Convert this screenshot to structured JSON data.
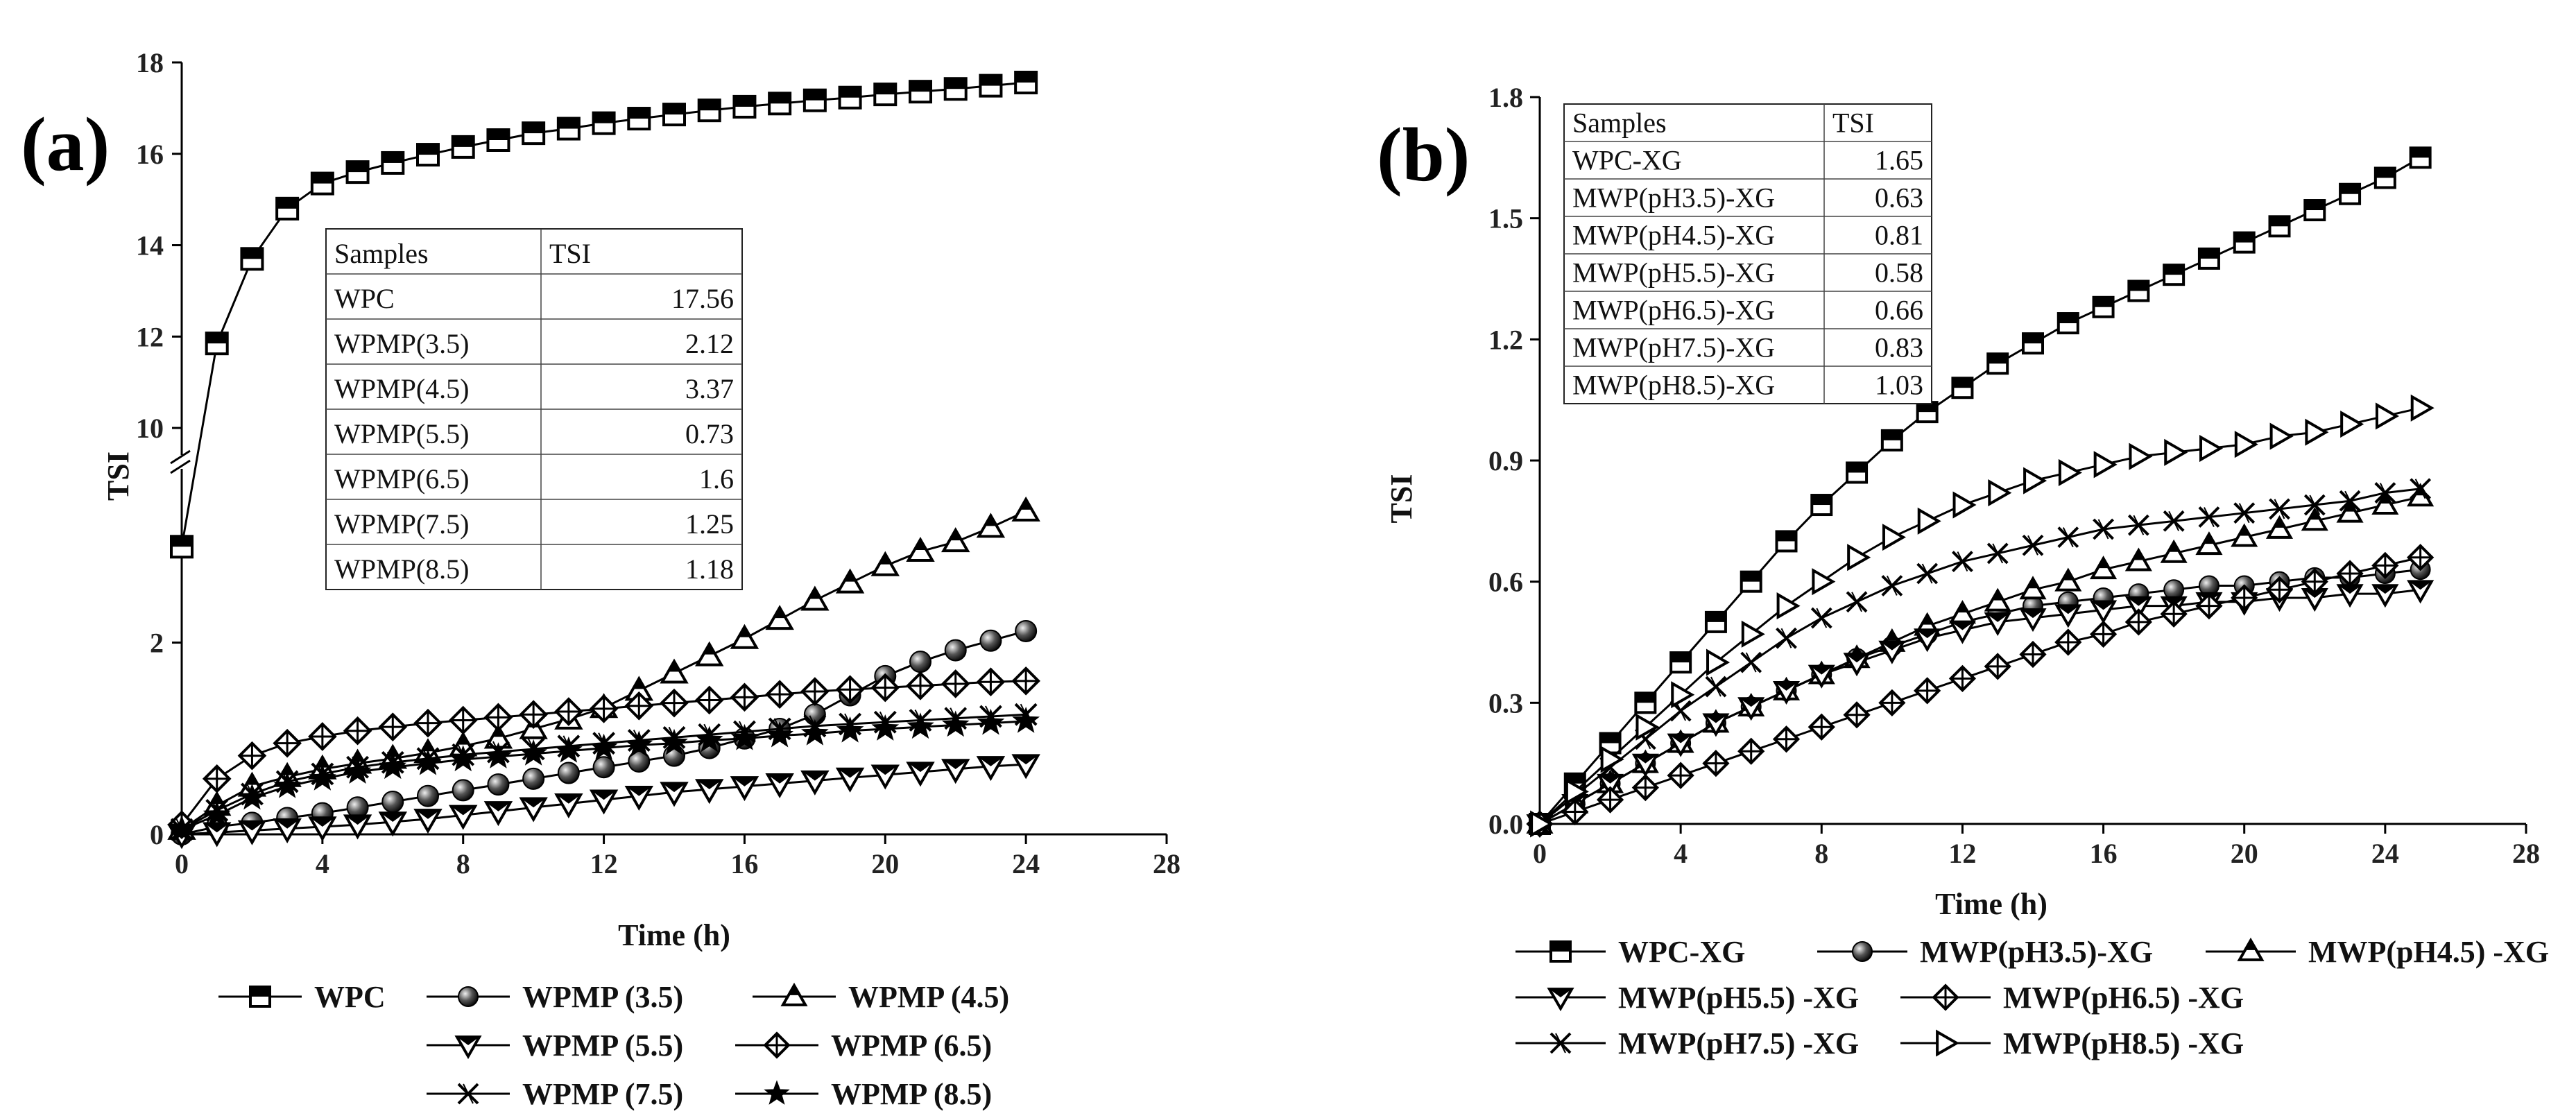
{
  "chart_data": [
    {
      "panel_label": "(a)",
      "type": "line",
      "xlabel": "Time (h)",
      "ylabel": "TSI",
      "xlim": [
        0,
        28
      ],
      "x_ticks": [
        "0",
        "4",
        "8",
        "12",
        "16",
        "20",
        "24",
        "28"
      ],
      "y_ticks": [
        "0",
        "2",
        "10",
        "12",
        "14",
        "16",
        "18"
      ],
      "axis_break": {
        "lower": [
          0,
          3.4
        ],
        "upper": [
          9.5,
          18
        ]
      },
      "table": {
        "headers": [
          "Samples",
          "TSI"
        ],
        "rows": [
          [
            "WPC",
            "17.56"
          ],
          [
            "WPMP(3.5)",
            "2.12"
          ],
          [
            "WPMP(4.5)",
            "3.37"
          ],
          [
            "WPMP(5.5)",
            "0.73"
          ],
          [
            "WPMP(6.5)",
            "1.6"
          ],
          [
            "WPMP(7.5)",
            "1.25"
          ],
          [
            "WPMP(8.5)",
            "1.18"
          ]
        ]
      },
      "series": [
        {
          "name": "WPC",
          "marker": "square",
          "legend": "WPC",
          "x": [
            0,
            1,
            2,
            3,
            4,
            5,
            6,
            7,
            8,
            9,
            10,
            11,
            12,
            13,
            14,
            15,
            16,
            17,
            18,
            19,
            20,
            21,
            22,
            23,
            24
          ],
          "values": [
            3,
            11.85,
            13.7,
            14.8,
            15.35,
            15.6,
            15.8,
            15.98,
            16.15,
            16.3,
            16.45,
            16.55,
            16.67,
            16.77,
            16.86,
            16.95,
            17.03,
            17.1,
            17.17,
            17.23,
            17.3,
            17.36,
            17.42,
            17.49,
            17.56
          ]
        },
        {
          "name": "WPMP (3.5)",
          "marker": "sphere",
          "legend": "WPMP (3.5)",
          "x": [
            0,
            1,
            2,
            3,
            4,
            5,
            6,
            7,
            8,
            9,
            10,
            11,
            12,
            13,
            14,
            15,
            16,
            17,
            18,
            19,
            20,
            21,
            22,
            23,
            24
          ],
          "values": [
            0,
            0.08,
            0.12,
            0.17,
            0.22,
            0.28,
            0.34,
            0.4,
            0.46,
            0.52,
            0.58,
            0.64,
            0.7,
            0.76,
            0.82,
            0.9,
            1.0,
            1.1,
            1.25,
            1.45,
            1.65,
            1.8,
            1.92,
            2.02,
            2.12
          ]
        },
        {
          "name": "WPMP (4.5)",
          "marker": "triangle-up",
          "legend": "WPMP (4.5)",
          "x": [
            0,
            1,
            2,
            3,
            4,
            5,
            6,
            7,
            8,
            9,
            10,
            11,
            12,
            13,
            14,
            15,
            16,
            17,
            18,
            19,
            20,
            21,
            22,
            23,
            24
          ],
          "values": [
            0.05,
            0.3,
            0.5,
            0.6,
            0.68,
            0.74,
            0.79,
            0.85,
            0.92,
            1.0,
            1.1,
            1.2,
            1.32,
            1.5,
            1.68,
            1.86,
            2.04,
            2.24,
            2.44,
            2.62,
            2.8,
            2.95,
            3.05,
            3.2,
            3.37
          ]
        },
        {
          "name": "WPMP (5.5)",
          "marker": "triangle-down",
          "legend": "WPMP (5.5)",
          "x": [
            0,
            1,
            2,
            3,
            4,
            5,
            6,
            7,
            8,
            9,
            10,
            11,
            12,
            13,
            14,
            15,
            16,
            17,
            18,
            19,
            20,
            21,
            22,
            23,
            24
          ],
          "values": [
            0,
            0.02,
            0.04,
            0.06,
            0.08,
            0.1,
            0.13,
            0.16,
            0.2,
            0.24,
            0.28,
            0.32,
            0.36,
            0.4,
            0.44,
            0.47,
            0.5,
            0.53,
            0.56,
            0.59,
            0.62,
            0.65,
            0.68,
            0.71,
            0.73
          ]
        },
        {
          "name": "WPMP (6.5)",
          "marker": "diamond-plus",
          "legend": "WPMP (6.5)",
          "x": [
            0,
            1,
            2,
            3,
            4,
            5,
            6,
            7,
            8,
            9,
            10,
            11,
            12,
            13,
            14,
            15,
            16,
            17,
            18,
            19,
            20,
            21,
            22,
            23,
            24
          ],
          "values": [
            0.1,
            0.58,
            0.82,
            0.95,
            1.02,
            1.08,
            1.12,
            1.16,
            1.19,
            1.22,
            1.25,
            1.28,
            1.31,
            1.34,
            1.37,
            1.4,
            1.43,
            1.46,
            1.49,
            1.51,
            1.53,
            1.55,
            1.57,
            1.59,
            1.6
          ]
        },
        {
          "name": "WPMP (7.5)",
          "marker": "x-cross",
          "legend": "WPMP (7.5)",
          "x": [
            0,
            1,
            2,
            3,
            4,
            5,
            6,
            7,
            8,
            9,
            10,
            11,
            12,
            13,
            14,
            15,
            16,
            17,
            18,
            19,
            20,
            21,
            22,
            23,
            24
          ],
          "values": [
            0.05,
            0.25,
            0.42,
            0.55,
            0.63,
            0.7,
            0.75,
            0.79,
            0.83,
            0.86,
            0.89,
            0.92,
            0.95,
            0.98,
            1.01,
            1.04,
            1.07,
            1.1,
            1.13,
            1.15,
            1.17,
            1.19,
            1.21,
            1.23,
            1.25
          ]
        },
        {
          "name": "WPMP (8.5)",
          "marker": "star",
          "legend": "WPMP (8.5)",
          "x": [
            0,
            1,
            2,
            3,
            4,
            5,
            6,
            7,
            8,
            9,
            10,
            11,
            12,
            13,
            14,
            15,
            16,
            17,
            18,
            19,
            20,
            21,
            22,
            23,
            24
          ],
          "values": [
            0.05,
            0.2,
            0.38,
            0.5,
            0.58,
            0.65,
            0.7,
            0.74,
            0.78,
            0.81,
            0.84,
            0.87,
            0.9,
            0.93,
            0.95,
            0.98,
            1.0,
            1.03,
            1.05,
            1.08,
            1.1,
            1.12,
            1.14,
            1.16,
            1.18
          ]
        }
      ],
      "legend_labels": [
        "WPC",
        "WPMP (3.5)",
        "WPMP (4.5)",
        "WPMP (5.5)",
        "WPMP (6.5)",
        "WPMP (7.5)",
        "WPMP (8.5)"
      ]
    },
    {
      "panel_label": "(b)",
      "type": "line",
      "xlabel": "Time (h)",
      "ylabel": "TSI",
      "xlim": [
        0,
        28
      ],
      "ylim": [
        0,
        1.8
      ],
      "x_ticks": [
        "0",
        "4",
        "8",
        "12",
        "16",
        "20",
        "24",
        "28"
      ],
      "y_ticks": [
        "0.0",
        "0.3",
        "0.6",
        "0.9",
        "1.2",
        "1.5",
        "1.8"
      ],
      "table": {
        "headers": [
          "Samples",
          "TSI"
        ],
        "rows": [
          [
            "WPC-XG",
            "1.65"
          ],
          [
            "MWP(pH3.5)-XG",
            "0.63"
          ],
          [
            "MWP(pH4.5)-XG",
            "0.81"
          ],
          [
            "MWP(pH5.5)-XG",
            "0.58"
          ],
          [
            "MWP(pH6.5)-XG",
            "0.66"
          ],
          [
            "MWP(pH7.5)-XG",
            "0.83"
          ],
          [
            "MWP(pH8.5)-XG",
            "1.03"
          ]
        ]
      },
      "series": [
        {
          "name": "WPC-XG",
          "marker": "square",
          "legend": "WPC-XG",
          "x": [
            0,
            1,
            2,
            3,
            4,
            5,
            6,
            7,
            8,
            9,
            10,
            11,
            12,
            13,
            14,
            15,
            16,
            17,
            18,
            19,
            20,
            21,
            22,
            23,
            24,
            25
          ],
          "values": [
            0,
            0.1,
            0.2,
            0.3,
            0.4,
            0.5,
            0.6,
            0.7,
            0.79,
            0.87,
            0.95,
            1.02,
            1.08,
            1.14,
            1.19,
            1.24,
            1.28,
            1.32,
            1.36,
            1.4,
            1.44,
            1.48,
            1.52,
            1.56,
            1.6,
            1.65
          ]
        },
        {
          "name": "MWP(pH3.5)-XG",
          "marker": "sphere",
          "legend": "MWP(pH3.5)-XG",
          "x": [
            0,
            1,
            2,
            3,
            4,
            5,
            6,
            7,
            8,
            9,
            10,
            11,
            12,
            13,
            14,
            15,
            16,
            17,
            18,
            19,
            20,
            21,
            22,
            23,
            24,
            25
          ],
          "values": [
            0,
            0.05,
            0.1,
            0.15,
            0.2,
            0.25,
            0.29,
            0.33,
            0.37,
            0.41,
            0.44,
            0.47,
            0.5,
            0.52,
            0.54,
            0.55,
            0.56,
            0.57,
            0.58,
            0.59,
            0.59,
            0.6,
            0.61,
            0.61,
            0.62,
            0.63
          ]
        },
        {
          "name": "MWP(pH4.5)-XG",
          "marker": "triangle-up",
          "legend": "MWP(pH4.5) -XG",
          "x": [
            0,
            1,
            2,
            3,
            4,
            5,
            6,
            7,
            8,
            9,
            10,
            11,
            12,
            13,
            14,
            15,
            16,
            17,
            18,
            19,
            20,
            21,
            22,
            23,
            24,
            25
          ],
          "values": [
            0,
            0.05,
            0.1,
            0.15,
            0.2,
            0.25,
            0.29,
            0.33,
            0.37,
            0.41,
            0.45,
            0.49,
            0.52,
            0.55,
            0.58,
            0.6,
            0.63,
            0.65,
            0.67,
            0.69,
            0.71,
            0.73,
            0.75,
            0.77,
            0.79,
            0.81
          ]
        },
        {
          "name": "MWP(pH5.5)-XG",
          "marker": "triangle-down",
          "legend": "MWP(pH5.5) -XG",
          "x": [
            0,
            1,
            2,
            3,
            4,
            5,
            6,
            7,
            8,
            9,
            10,
            11,
            12,
            13,
            14,
            15,
            16,
            17,
            18,
            19,
            20,
            21,
            22,
            23,
            24,
            25
          ],
          "values": [
            0,
            0.05,
            0.1,
            0.15,
            0.2,
            0.25,
            0.29,
            0.33,
            0.37,
            0.4,
            0.43,
            0.46,
            0.48,
            0.5,
            0.51,
            0.52,
            0.53,
            0.54,
            0.54,
            0.55,
            0.55,
            0.56,
            0.56,
            0.57,
            0.57,
            0.58
          ]
        },
        {
          "name": "MWP(pH6.5)-XG",
          "marker": "diamond-plus",
          "legend": "MWP(pH6.5) -XG",
          "x": [
            0,
            1,
            2,
            3,
            4,
            5,
            6,
            7,
            8,
            9,
            10,
            11,
            12,
            13,
            14,
            15,
            16,
            17,
            18,
            19,
            20,
            21,
            22,
            23,
            24,
            25
          ],
          "values": [
            0,
            0.03,
            0.06,
            0.09,
            0.12,
            0.15,
            0.18,
            0.21,
            0.24,
            0.27,
            0.3,
            0.33,
            0.36,
            0.39,
            0.42,
            0.45,
            0.47,
            0.5,
            0.52,
            0.54,
            0.56,
            0.58,
            0.6,
            0.62,
            0.64,
            0.66
          ]
        },
        {
          "name": "MWP(pH7.5)-XG",
          "marker": "x-cross",
          "legend": "MWP(pH7.5) -XG",
          "x": [
            0,
            1,
            2,
            3,
            4,
            5,
            6,
            7,
            8,
            9,
            10,
            11,
            12,
            13,
            14,
            15,
            16,
            17,
            18,
            19,
            20,
            21,
            22,
            23,
            24,
            25
          ],
          "values": [
            0,
            0.07,
            0.14,
            0.21,
            0.28,
            0.34,
            0.4,
            0.46,
            0.51,
            0.55,
            0.59,
            0.62,
            0.65,
            0.67,
            0.69,
            0.71,
            0.73,
            0.74,
            0.75,
            0.76,
            0.77,
            0.78,
            0.79,
            0.8,
            0.82,
            0.83
          ]
        },
        {
          "name": "MWP(pH8.5)-XG",
          "marker": "triangle-right",
          "legend": "MWP(pH8.5) -XG",
          "x": [
            0,
            1,
            2,
            3,
            4,
            5,
            6,
            7,
            8,
            9,
            10,
            11,
            12,
            13,
            14,
            15,
            16,
            17,
            18,
            19,
            20,
            21,
            22,
            23,
            24,
            25
          ],
          "values": [
            0,
            0.08,
            0.16,
            0.24,
            0.32,
            0.4,
            0.47,
            0.54,
            0.6,
            0.66,
            0.71,
            0.75,
            0.79,
            0.82,
            0.85,
            0.87,
            0.89,
            0.91,
            0.92,
            0.93,
            0.94,
            0.96,
            0.97,
            0.99,
            1.01,
            1.03
          ]
        }
      ],
      "legend_labels": [
        "WPC-XG",
        "MWP(pH3.5)-XG",
        "MWP(pH4.5) -XG",
        "MWP(pH5.5) -XG",
        "MWP(pH6.5) -XG",
        "MWP(pH7.5) -XG",
        "MWP(pH8.5) -XG"
      ]
    }
  ]
}
